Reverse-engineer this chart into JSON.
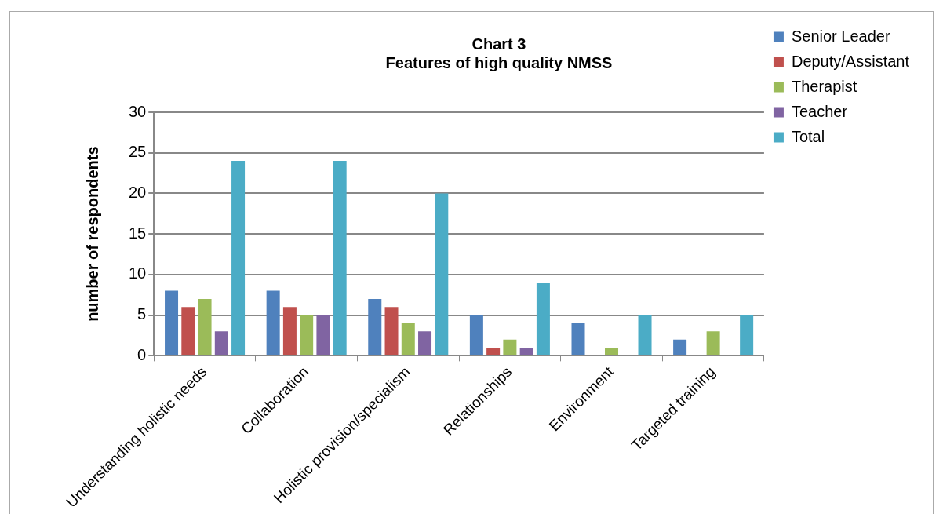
{
  "chart_data": {
    "type": "bar",
    "title": "Chart 3\nFeatures of high quality NMSS",
    "ylabel": "number of respondents",
    "categories": [
      "Understanding holistic needs",
      "Collaboration",
      "Holistic provision/specialism",
      "Relationships",
      "Environment",
      "Targeted training"
    ],
    "series": [
      {
        "name": "Senior Leader",
        "color": "#4f81bd",
        "values": [
          8,
          8,
          7,
          5,
          4,
          2
        ]
      },
      {
        "name": "Deputy/Assistant",
        "color": "#c0504d",
        "values": [
          6,
          6,
          6,
          1,
          0,
          0
        ]
      },
      {
        "name": "Therapist",
        "color": "#9bbb59",
        "values": [
          7,
          5,
          4,
          2,
          1,
          3
        ]
      },
      {
        "name": "Teacher",
        "color": "#8064a2",
        "values": [
          3,
          5,
          3,
          1,
          0,
          0
        ]
      },
      {
        "name": "Total",
        "color": "#4bacc6",
        "values": [
          24,
          24,
          20,
          9,
          5,
          5
        ]
      }
    ],
    "ylim": [
      0,
      30
    ],
    "yticks": [
      0,
      5,
      10,
      15,
      20,
      25,
      30
    ],
    "grid": "y",
    "legend": "right"
  }
}
